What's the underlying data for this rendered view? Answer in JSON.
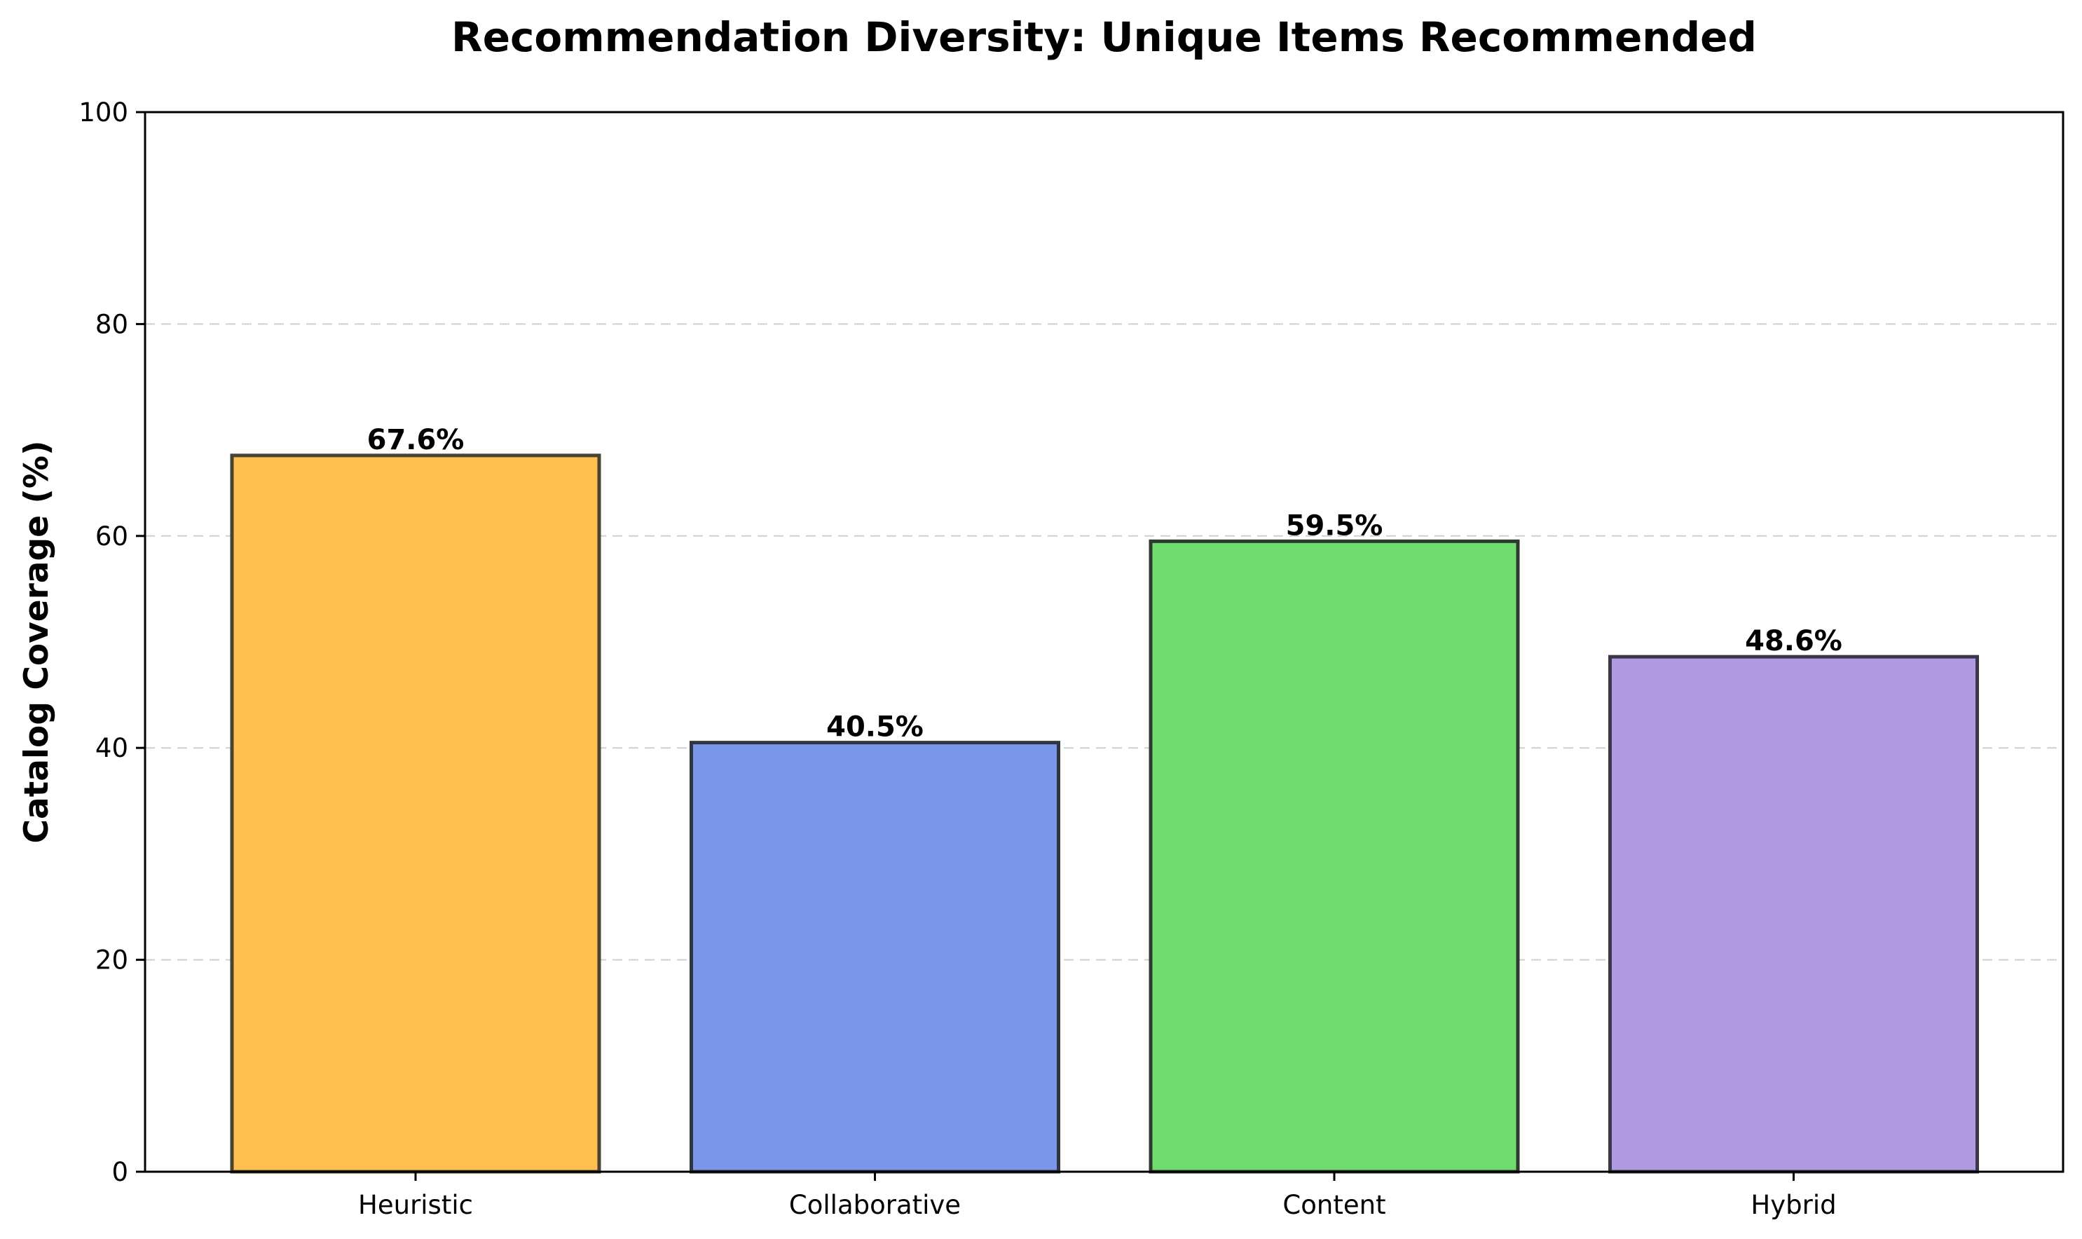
{
  "chart_data": {
    "type": "bar",
    "title": "Recommendation Diversity: Unique Items Recommended",
    "xlabel": "",
    "ylabel": "Catalog Coverage (%)",
    "categories": [
      "Heuristic",
      "Collaborative",
      "Content",
      "Hybrid"
    ],
    "values": [
      67.6,
      40.5,
      59.5,
      48.6
    ],
    "value_labels": [
      "67.6%",
      "40.5%",
      "59.5%",
      "48.6%"
    ],
    "colors": [
      "#FFC04F",
      "#7A96E8",
      "#70DB6F",
      "#B29AE3"
    ],
    "edge_colors": [
      "#4a4232",
      "#2f3640",
      "#2f3a2f",
      "#3c3646"
    ],
    "ylim": [
      0,
      100
    ],
    "yticks": [
      0,
      20,
      40,
      60,
      80,
      100
    ],
    "ytick_labels": [
      "0",
      "20",
      "40",
      "60",
      "80",
      "100"
    ],
    "grid": "y-dashed",
    "legend": "none"
  }
}
